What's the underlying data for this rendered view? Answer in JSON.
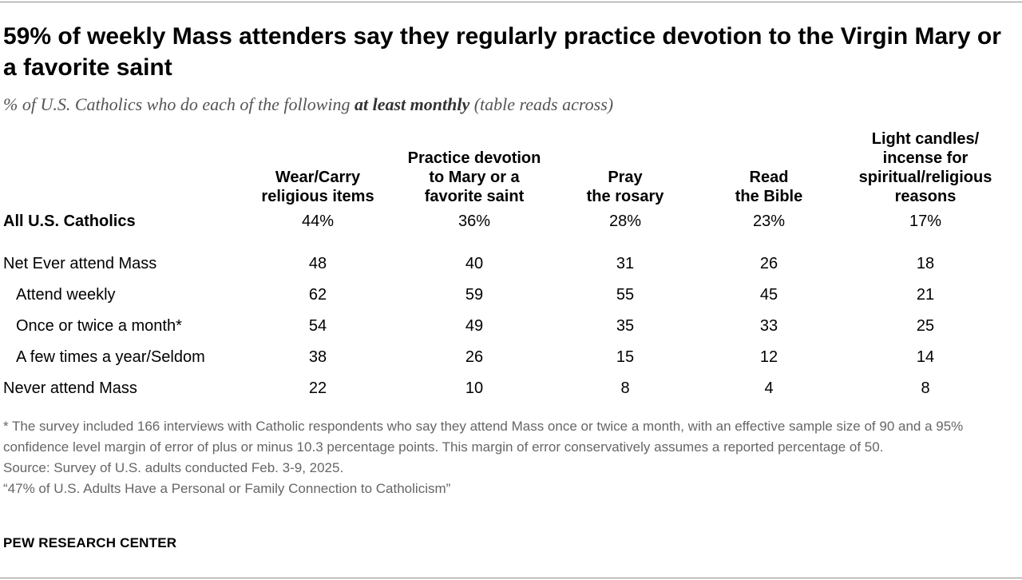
{
  "title": "59% of weekly Mass attenders say they regularly practice devotion to the Virgin Mary or a favorite saint",
  "subtitle": {
    "before": "% of U.S. Catholics who do each of the following ",
    "emphasis": "at least monthly",
    "after": " (table reads across)"
  },
  "chart_data": {
    "type": "table",
    "columns": [
      [
        "Wear/Carry",
        "religious items"
      ],
      [
        "Practice devotion",
        "to Mary or a",
        "favorite saint"
      ],
      [
        "Pray",
        "the rosary"
      ],
      [
        "Read",
        "the Bible"
      ],
      [
        "Light candles/",
        "incense for",
        "spiritual/religious",
        "reasons"
      ]
    ],
    "rows": [
      {
        "label": "All U.S. Catholics",
        "values": [
          "44%",
          "36%",
          "28%",
          "23%",
          "17%"
        ]
      },
      {
        "label": "Net Ever attend Mass",
        "values": [
          "48",
          "40",
          "31",
          "26",
          "18"
        ]
      },
      {
        "label": "Attend weekly",
        "values": [
          "62",
          "59",
          "55",
          "45",
          "21"
        ]
      },
      {
        "label": "Once or twice a month*",
        "values": [
          "54",
          "49",
          "35",
          "33",
          "25"
        ]
      },
      {
        "label": "A few times a year/Seldom",
        "values": [
          "38",
          "26",
          "15",
          "12",
          "14"
        ]
      },
      {
        "label": "Never attend Mass",
        "values": [
          "22",
          "10",
          "8",
          "4",
          "8"
        ]
      }
    ]
  },
  "notes": {
    "footnote": "* The survey included 166 interviews with Catholic respondents who say they attend Mass once or twice a month, with an effective sample size of 90 and a 95% confidence level margin of error of plus or minus 10.3 percentage points. This margin of error conservatively assumes a reported percentage of 50.",
    "source": "Source: Survey of U.S. adults conducted Feb. 3-9, 2025.",
    "report": "“47% of U.S. Adults Have a Personal or Family Connection to Catholicism”"
  },
  "brand": "PEW RESEARCH CENTER"
}
